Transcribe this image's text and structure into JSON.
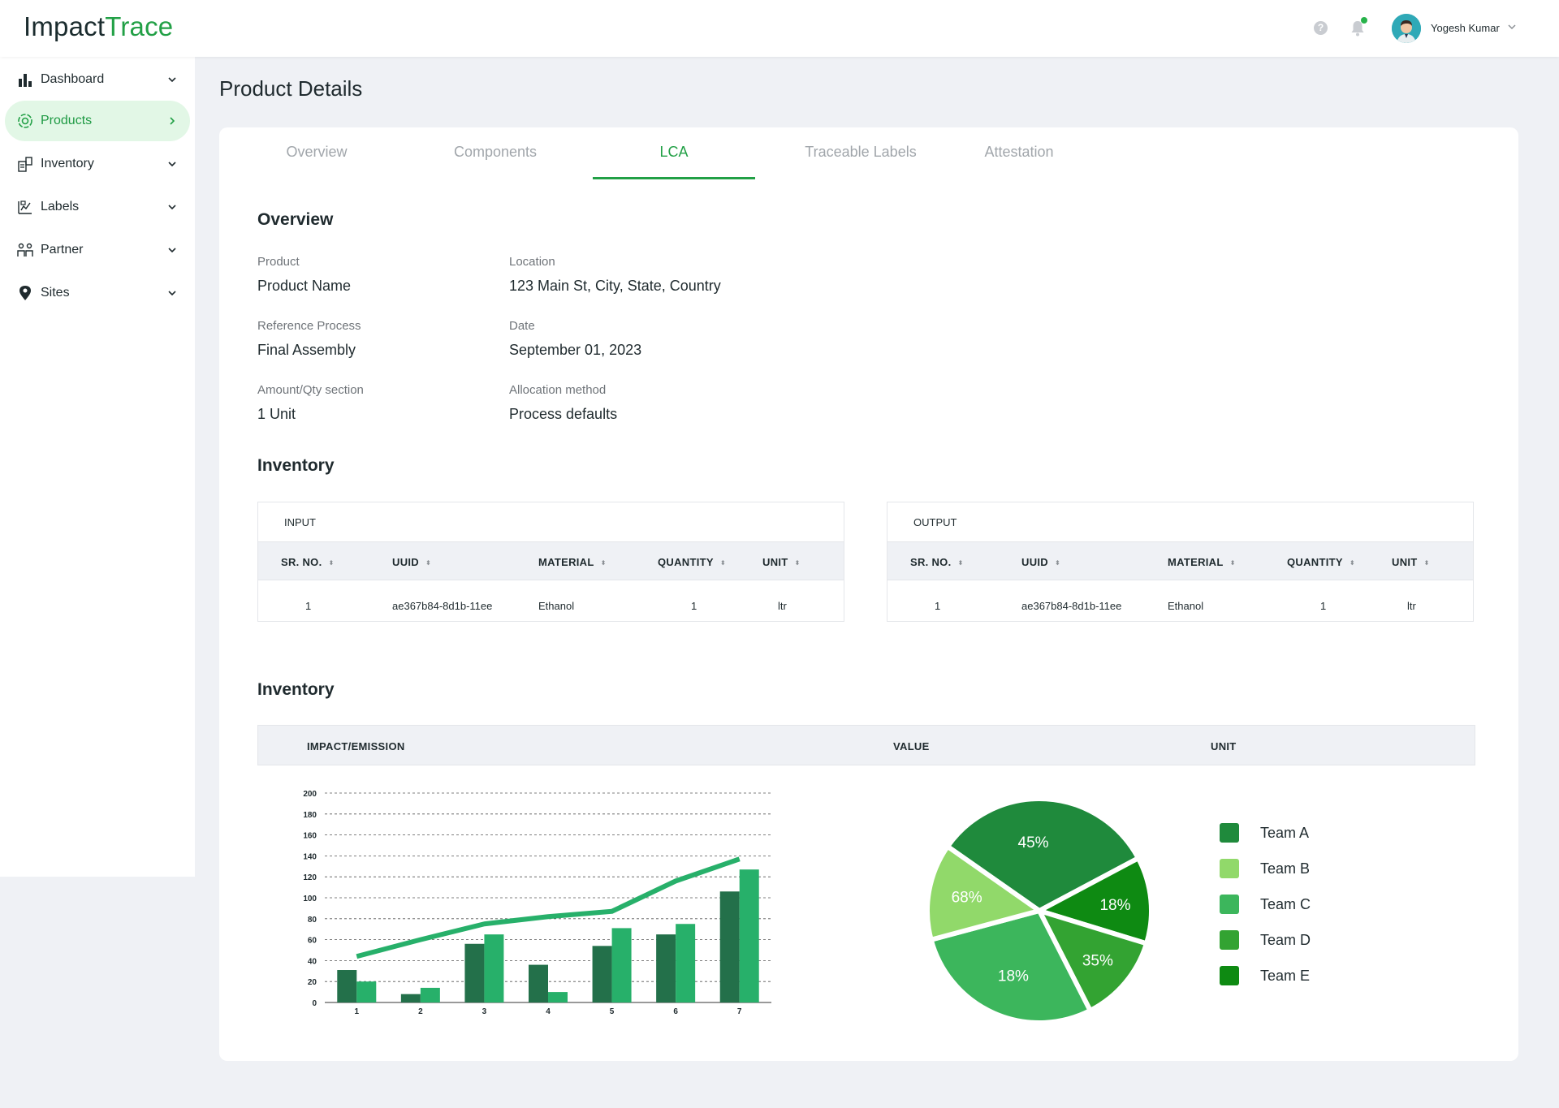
{
  "app": {
    "logo_part1": "Impact",
    "logo_part2": "Trace",
    "user_name": "Yogesh Kumar",
    "help_glyph": "?"
  },
  "icons": {
    "help": "help-icon",
    "notifications": "bell-icon",
    "avatar": "user-avatar",
    "user_menu": "chevron-down-icon"
  },
  "colors": {
    "brand_green": "#22a046",
    "active_bg": "#e2f7e6",
    "bar_dark": "#23704a",
    "bar_light": "#27b06a",
    "line": "#27b06a"
  },
  "sidebar": {
    "items": [
      {
        "label": "Dashboard",
        "icon": "bar-chart-icon",
        "chevron": "chevron-down-icon",
        "active": false
      },
      {
        "label": "Products",
        "icon": "products-icon",
        "chevron": "chevron-right-icon",
        "active": true
      },
      {
        "label": "Inventory",
        "icon": "inventory-icon",
        "chevron": "chevron-down-icon",
        "active": false
      },
      {
        "label": "Labels",
        "icon": "labels-icon",
        "chevron": "chevron-down-icon",
        "active": false
      },
      {
        "label": "Partner",
        "icon": "partner-icon",
        "chevron": "chevron-down-icon",
        "active": false
      },
      {
        "label": "Sites",
        "icon": "location-pin-icon",
        "chevron": "chevron-down-icon",
        "active": false
      }
    ]
  },
  "page": {
    "title": "Product Details"
  },
  "tabs": [
    {
      "label": "Overview",
      "active": false
    },
    {
      "label": "Components",
      "active": false
    },
    {
      "label": "LCA",
      "active": true
    },
    {
      "label": "Traceable Labels",
      "active": false
    },
    {
      "label": "Attestation",
      "active": false
    }
  ],
  "overview": {
    "heading": "Overview",
    "fields": [
      {
        "label": "Product",
        "value": "Product Name"
      },
      {
        "label": "Location",
        "value": "123 Main St, City, State, Country"
      },
      {
        "label": "Reference Process",
        "value": "Final Assembly"
      },
      {
        "label": "Date",
        "value": "September 01, 2023"
      },
      {
        "label": "Amount/Qty section",
        "value": "1 Unit"
      },
      {
        "label": "Allocation method",
        "value": "Process defaults"
      }
    ]
  },
  "inventory": {
    "heading": "Inventory",
    "input_table": {
      "caption": "INPUT",
      "columns": [
        "SR. NO.",
        "UUID",
        "MATERIAL",
        "QUANTITY",
        "UNIT"
      ],
      "rows": [
        [
          "1",
          "ae367b84-8d1b-11ee",
          "Ethanol",
          "1",
          "ltr"
        ]
      ]
    },
    "output_table": {
      "caption": "OUTPUT",
      "columns": [
        "SR. NO.",
        "UUID",
        "MATERIAL",
        "QUANTITY",
        "UNIT"
      ],
      "rows": [
        [
          "1",
          "ae367b84-8d1b-11ee",
          "Ethanol",
          "1",
          "ltr"
        ]
      ]
    },
    "sort_glyph": "⬍"
  },
  "impact": {
    "heading": "Inventory",
    "columns": [
      "IMPACT/EMISSION",
      "VALUE",
      "UNIT"
    ]
  },
  "chart_data": [
    {
      "type": "bar",
      "categories": [
        "1",
        "2",
        "3",
        "4",
        "5",
        "6",
        "7"
      ],
      "series": [
        {
          "type": "bar",
          "color": "#23704a",
          "values": [
            31,
            8,
            56,
            36,
            54,
            65,
            106
          ]
        },
        {
          "type": "bar",
          "color": "#27b06a",
          "values": [
            20,
            14,
            65,
            10,
            71,
            75,
            127
          ]
        },
        {
          "type": "line",
          "color": "#27b06a",
          "values": [
            44,
            60,
            75,
            82,
            87,
            116,
            137
          ]
        }
      ],
      "ylim": [
        0,
        200
      ],
      "yticks": [
        "0",
        "20",
        "40",
        "60",
        "80",
        "100",
        "120",
        "140",
        "160",
        "180",
        "200"
      ],
      "grid": true
    },
    {
      "type": "pie",
      "slices": [
        {
          "label": "45%",
          "color": "#1f8a3c"
        },
        {
          "label": "18%",
          "color": "#0e8a12"
        },
        {
          "label": "35%",
          "color": "#33a332"
        },
        {
          "label": "18%",
          "color": "#3cb65c"
        },
        {
          "label": "68%",
          "color": "#91d96a"
        }
      ],
      "legend": [
        {
          "name": "Team A",
          "color": "#1f8a3c"
        },
        {
          "name": "Team B",
          "color": "#91d96a"
        },
        {
          "name": "Team C",
          "color": "#3cb65c"
        },
        {
          "name": "Team D",
          "color": "#33a332"
        },
        {
          "name": "Team E",
          "color": "#0e8a12"
        }
      ],
      "legend_position": "right"
    }
  ]
}
